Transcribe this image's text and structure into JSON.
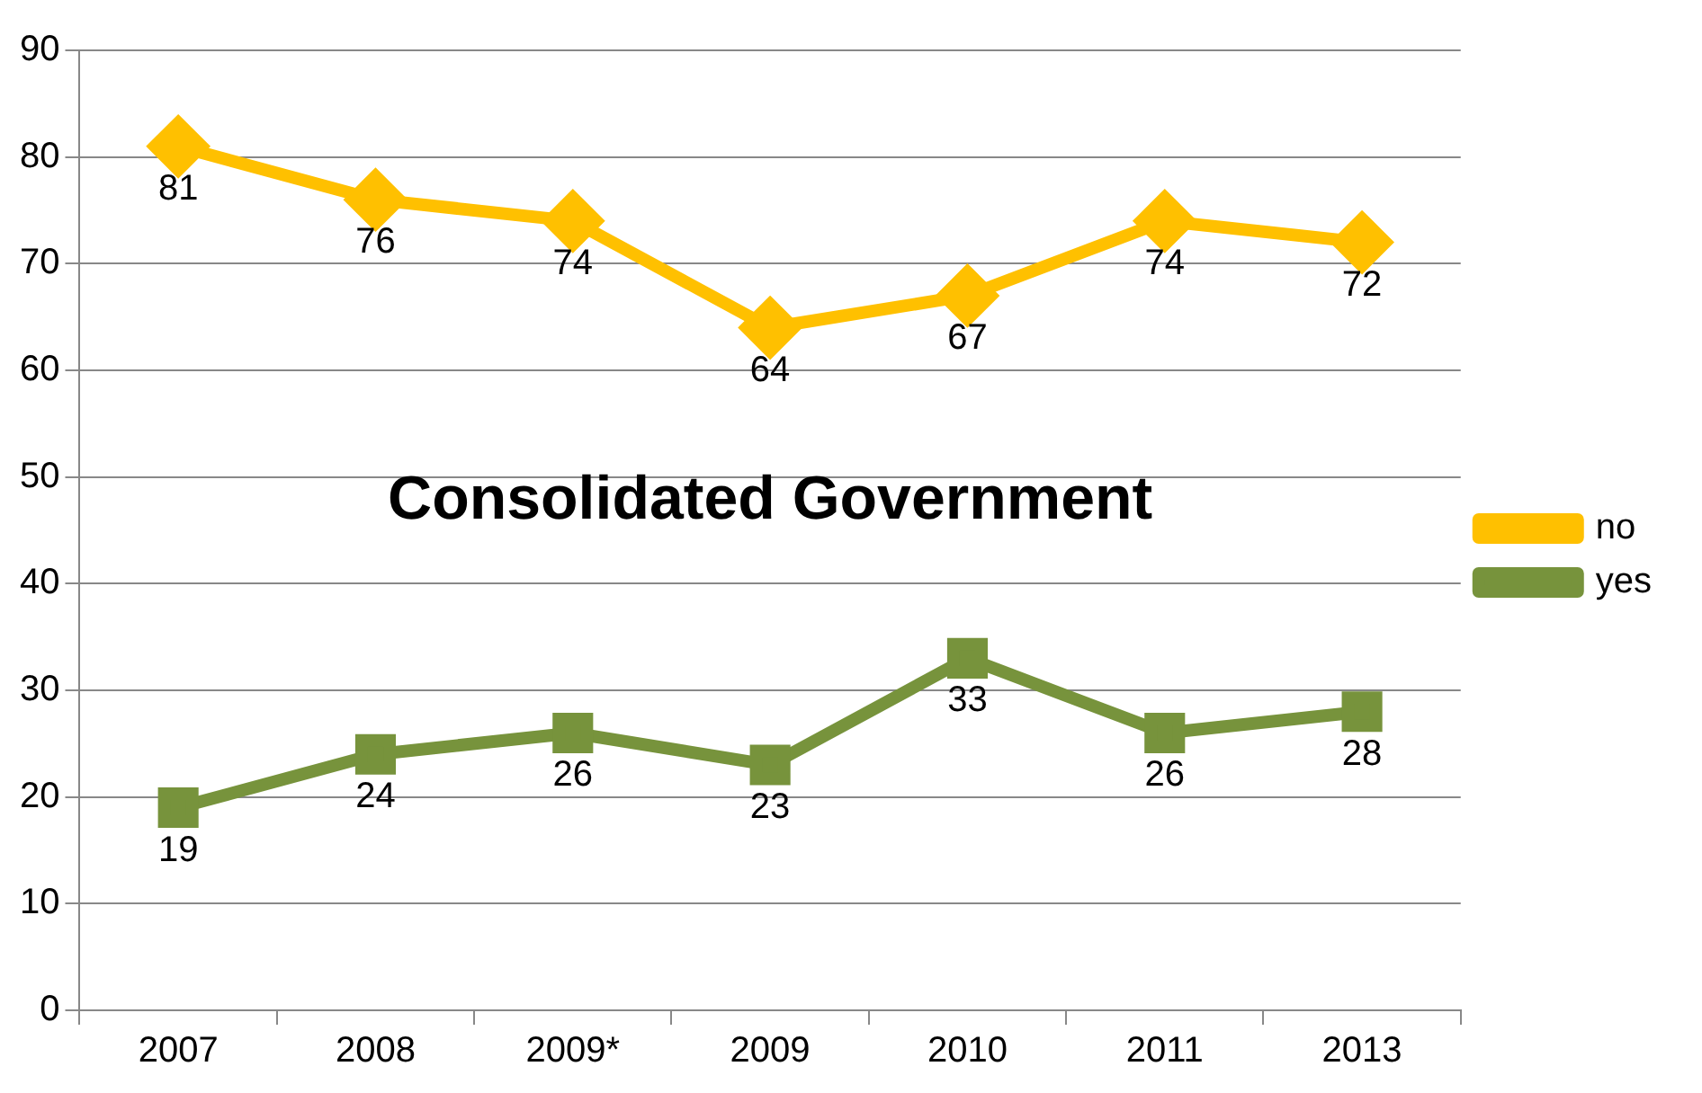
{
  "chart_data": {
    "type": "line",
    "title": "Consolidated Government",
    "categories": [
      "2007",
      "2008",
      "2009*",
      "2009",
      "2010",
      "2011",
      "2013"
    ],
    "series": [
      {
        "name": "no",
        "color": "#ffc000",
        "marker": "diamond",
        "values": [
          81,
          76,
          74,
          64,
          67,
          74,
          72
        ]
      },
      {
        "name": "yes",
        "color": "#77933c",
        "marker": "square",
        "values": [
          19,
          24,
          26,
          23,
          33,
          26,
          28
        ]
      }
    ],
    "ylim": [
      0,
      90
    ],
    "yticks": [
      0,
      10,
      20,
      30,
      40,
      50,
      60,
      70,
      80,
      90
    ],
    "grid": "y",
    "legend": "right",
    "data_labels": true
  }
}
